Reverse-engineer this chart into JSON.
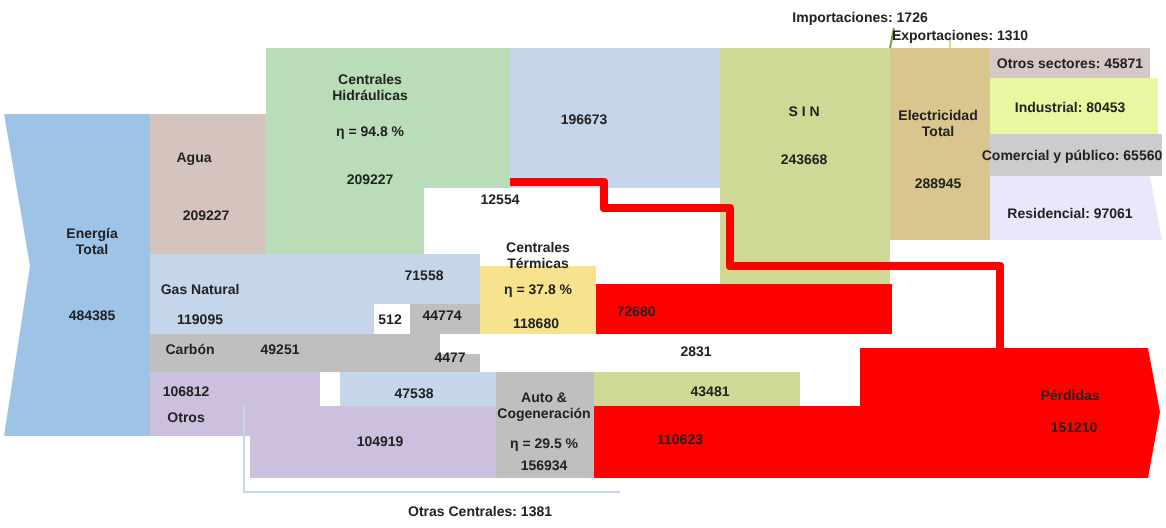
{
  "chart_data": {
    "type": "other",
    "categories": [
      "Energía Total",
      "Agua",
      "Centrales Hidráulicas",
      "S I N",
      "Electricidad Total",
      "Otros sectores: 45871",
      "Industrial: 80453",
      "Comercial y público: 65560",
      "Residencial: 97061",
      "Gas Natural",
      "Centrales Térmicas",
      "Carbón",
      "Otros",
      "Auto & Cogeneración",
      "Pérdidas",
      "Importaciones: 1726",
      "Exportaciones: 1310",
      "Otras Centrales: 1381"
    ],
    "values": [
      484385,
      209227,
      209227,
      243668,
      288945,
      null,
      null,
      null,
      null,
      119095,
      118680,
      49251,
      106812,
      156934,
      151210,
      null,
      null,
      null
    ],
    "colors": [
      "#9dc3e6",
      "#d5c4be",
      "#b9ddb8",
      "#cfd995",
      "#d9c68e",
      "#d6c9c5",
      "#e9f7a0",
      "#cccccc",
      "#ece6fb",
      "#c5d5ea",
      "#f7e28e",
      "#bfbfbf",
      "#ccc0de",
      "#bfbfbf",
      "#ff0000",
      "#6aa84f",
      "#cfd995",
      "#c5d5ea"
    ],
    "data_labels": true,
    "annotations": [
      "η = 94.8 %",
      "η = 37.8 %",
      "η = 29.5 %",
      "196673",
      "12554",
      "71558",
      "512",
      "44774",
      "72680",
      "4477",
      "2831",
      "47538",
      "104919",
      "43481",
      "110623"
    ]
  }
}
